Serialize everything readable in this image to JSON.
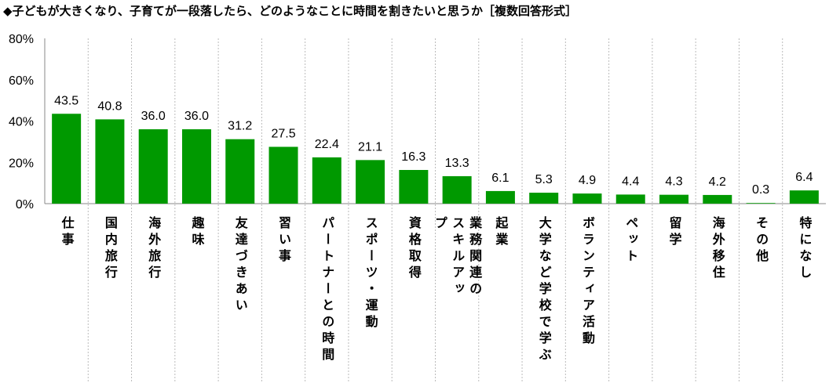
{
  "chart_data": {
    "type": "bar",
    "title": "◆子どもが大きくなり、子育てが一段落したら、どのようなことに時間を割きたいと思うか［複数回答形式］",
    "categories": [
      "仕事",
      "国内旅行",
      "海外旅行",
      "趣味",
      "友達づきあい",
      "習い事",
      "パートナーとの時間",
      "スポーツ・運動",
      "資格取得",
      "業務関連のスキルアップ",
      "起業",
      "大学など学校で学ぶ",
      "ボランティア活動",
      "ペット",
      "留学",
      "海外移住",
      "その他",
      "特になし"
    ],
    "values": [
      43.5,
      40.8,
      36.0,
      36.0,
      31.2,
      27.5,
      22.4,
      21.1,
      16.3,
      13.3,
      6.1,
      5.3,
      4.9,
      4.4,
      4.3,
      4.2,
      0.3,
      6.4
    ],
    "data_labels": [
      "43.5",
      "40.8",
      "36.0",
      "36.0",
      "31.2",
      "27.5",
      "22.4",
      "21.1",
      "16.3",
      "13.3",
      "6.1",
      "5.3",
      "4.9",
      "4.4",
      "4.3",
      "4.2",
      "0.3",
      "6.4"
    ],
    "yticks": [
      "0%",
      "20%",
      "40%",
      "60%",
      "80%"
    ],
    "ytick_values": [
      0,
      20,
      40,
      60,
      80
    ],
    "ylim": [
      0,
      80
    ],
    "xlabel": "",
    "ylabel": "",
    "bar_color": "#009900"
  }
}
